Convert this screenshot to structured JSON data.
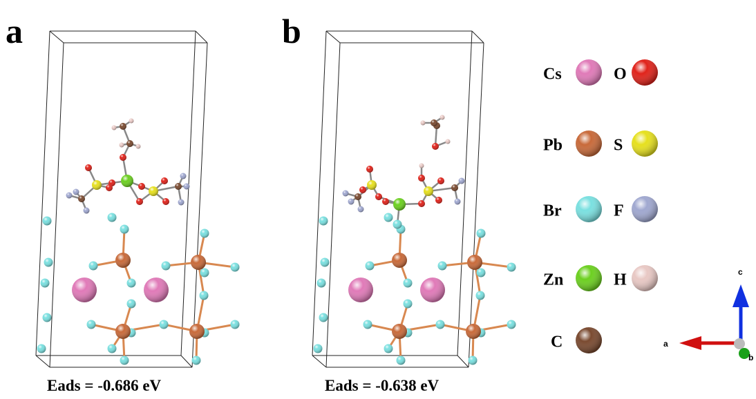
{
  "panels": [
    {
      "label": "a",
      "caption": "Eads = -0.686 eV"
    },
    {
      "label": "b",
      "caption": "Eads = -0.638 eV"
    }
  ],
  "legend": [
    {
      "symbol": "Cs",
      "color": "#e07ab8"
    },
    {
      "symbol": "O",
      "color": "#e0231b"
    },
    {
      "symbol": "Pb",
      "color": "#c86a3a"
    },
    {
      "symbol": "S",
      "color": "#e6e01e"
    },
    {
      "symbol": "Br",
      "color": "#7ae0e0"
    },
    {
      "symbol": "F",
      "color": "#a0a8d0"
    },
    {
      "symbol": "Zn",
      "color": "#6cd020"
    },
    {
      "symbol": "H",
      "color": "#e8c8c4"
    },
    {
      "symbol": "C",
      "color": "#7a4a30"
    }
  ],
  "axes": {
    "a": "a",
    "b": "b",
    "c": "c"
  }
}
